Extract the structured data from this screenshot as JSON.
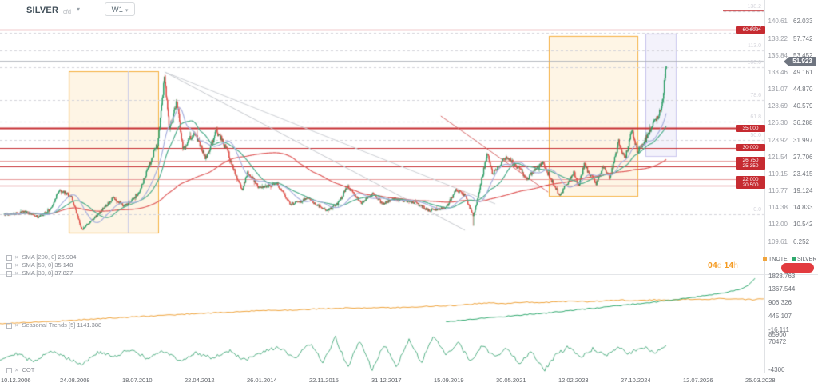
{
  "toolbar": {
    "symbol": "SILVER",
    "instrument_type": "cfd",
    "timeframe": "W1"
  },
  "legends": {
    "sma": [
      {
        "name": "SMA",
        "params": "[200, 0]",
        "value": "26.904"
      },
      {
        "name": "SMA",
        "params": "[50, 0]",
        "value": "35.148"
      },
      {
        "name": "SMA",
        "params": "[30, 0]",
        "value": "37.827"
      }
    ],
    "countdown": {
      "days": "04",
      "days_unit": "d",
      "hours": "14",
      "hours_unit": "h"
    },
    "overlay_series": [
      {
        "label": "TNOTE",
        "color": "#f0a43c"
      },
      {
        "label": "SILVER",
        "color": "#2fa96e"
      }
    ],
    "seasonal": {
      "name": "Seasonal",
      "name2": "Trends",
      "params": "[5]",
      "value": "1141.388"
    },
    "cot": {
      "name": "COT"
    }
  },
  "axes": {
    "price_left": [
      "140.61",
      "138.22",
      "135.84",
      "133.46",
      "131.07",
      "128.69",
      "126.30",
      "123.92",
      "121.54",
      "119.15",
      "116.77",
      "114.38",
      "112.00",
      "109.61"
    ],
    "price_right": [
      "62.033",
      "57.742",
      "53.452",
      "49.161",
      "44.870",
      "40.579",
      "36.288",
      "31.997",
      "27.706",
      "23.415",
      "19.124",
      "14.833",
      "10.542",
      "6.252"
    ],
    "current_price": "51.923",
    "seasonal_ticks": [
      "1828.763",
      "1367.544",
      "906.326",
      "445.107",
      "-16.111"
    ],
    "cot_ticks": [
      "85900",
      "70472",
      "-4300"
    ],
    "dates": [
      "10.12.2006",
      "24.08.2008",
      "18.07.2010",
      "22.04.2012",
      "26.01.2014",
      "22.11.2015",
      "31.12.2017",
      "15.09.2019",
      "30.05.2021",
      "12.02.2023",
      "27.10.2024",
      "12.07.2026",
      "25.03.2028"
    ]
  },
  "chart_data": {
    "type": "candlestick",
    "symbol": "SILVER",
    "timeframe": "W1",
    "price_range": [
      6.252,
      62.033
    ],
    "time_range": [
      2006.94,
      2028.23
    ],
    "current_price_value": 51.923,
    "price_keyframes": [
      [
        2006.6,
        13.1
      ],
      [
        2006.94,
        13.3
      ],
      [
        2007.2,
        13.9
      ],
      [
        2007.6,
        12.4
      ],
      [
        2007.95,
        14.5
      ],
      [
        2008.2,
        19.5
      ],
      [
        2008.55,
        17.5
      ],
      [
        2008.85,
        9.2
      ],
      [
        2009.3,
        13.0
      ],
      [
        2009.75,
        17.2
      ],
      [
        2010.1,
        15.2
      ],
      [
        2010.5,
        18.5
      ],
      [
        2010.9,
        28.0
      ],
      [
        2011.05,
        31.0
      ],
      [
        2011.25,
        48.5
      ],
      [
        2011.38,
        34.5
      ],
      [
        2011.6,
        42.0
      ],
      [
        2011.78,
        29.5
      ],
      [
        2012.1,
        34.0
      ],
      [
        2012.45,
        27.2
      ],
      [
        2012.75,
        34.5
      ],
      [
        2013.1,
        28.5
      ],
      [
        2013.3,
        23.3
      ],
      [
        2013.5,
        19.0
      ],
      [
        2013.65,
        24.0
      ],
      [
        2014.0,
        19.8
      ],
      [
        2014.5,
        21.0
      ],
      [
        2014.9,
        15.6
      ],
      [
        2015.4,
        17.2
      ],
      [
        2015.95,
        13.9
      ],
      [
        2016.3,
        16.2
      ],
      [
        2016.55,
        20.3
      ],
      [
        2016.95,
        16.0
      ],
      [
        2017.3,
        18.4
      ],
      [
        2017.55,
        15.9
      ],
      [
        2017.9,
        17.0
      ],
      [
        2018.5,
        16.2
      ],
      [
        2018.9,
        14.1
      ],
      [
        2019.4,
        14.8
      ],
      [
        2019.7,
        19.4
      ],
      [
        2019.95,
        17.9
      ],
      [
        2020.2,
        12.5
      ],
      [
        2020.6,
        28.8
      ],
      [
        2020.75,
        23.5
      ],
      [
        2021.1,
        27.5
      ],
      [
        2021.4,
        26.0
      ],
      [
        2021.75,
        22.3
      ],
      [
        2022.2,
        26.2
      ],
      [
        2022.7,
        17.9
      ],
      [
        2023.1,
        23.8
      ],
      [
        2023.25,
        20.3
      ],
      [
        2023.4,
        25.8
      ],
      [
        2023.75,
        20.9
      ],
      [
        2023.95,
        25.2
      ],
      [
        2024.15,
        22.2
      ],
      [
        2024.4,
        31.5
      ],
      [
        2024.6,
        27.5
      ],
      [
        2024.8,
        34.5
      ],
      [
        2024.95,
        29.0
      ],
      [
        2025.2,
        32.3
      ],
      [
        2025.45,
        36.8
      ],
      [
        2025.6,
        39.0
      ],
      [
        2025.7,
        44.0
      ],
      [
        2025.78,
        51.9
      ]
    ],
    "horizontal_levels": [
      {
        "label": null,
        "price": 64.9,
        "weight": 1,
        "light": false
      },
      {
        "label": "60.000",
        "price": 60.0,
        "weight": 1,
        "light": false
      },
      {
        "label": "35.000",
        "price": 35.0,
        "weight": 2,
        "light": false
      },
      {
        "label": "30.000",
        "price": 30.0,
        "weight": 1,
        "light": false
      },
      {
        "label": "26.750",
        "price": 26.75,
        "weight": 1,
        "light": true
      },
      {
        "label": "25.350",
        "price": 25.35,
        "weight": 1,
        "light": false
      },
      {
        "label": "22.000",
        "price": 22.0,
        "weight": 1,
        "light": true
      },
      {
        "label": "20.500",
        "price": 20.5,
        "weight": 1,
        "light": false
      }
    ],
    "fib_levels": [
      {
        "label": "138.2",
        "price": 64.7
      },
      {
        "label": "127.2",
        "price": 59.2
      },
      {
        "label": "113.0",
        "price": 54.7
      },
      {
        "label": "100.0",
        "price": 50.5
      },
      {
        "label": "78.6",
        "price": 42.2
      },
      {
        "label": "61.8",
        "price": 36.7
      },
      {
        "label": "50.0",
        "price": 32.0
      },
      {
        "label": "0.0",
        "price": 13.15
      }
    ],
    "sma_lines": [
      {
        "window": 200,
        "color": "#e05b5b"
      },
      {
        "window": 50,
        "color": "#4fae8d"
      },
      {
        "window": 30,
        "color": "#a7b0de"
      }
    ],
    "boxes": [
      {
        "t0": 2008.47,
        "t1": 2011.06,
        "p0": 8.48,
        "p1": 49.45,
        "accent": "orange"
      },
      {
        "t0": 2022.38,
        "t1": 2024.95,
        "p0": 17.8,
        "p1": 58.4,
        "accent": "orange"
      },
      {
        "t0": 2025.18,
        "t1": 2026.06,
        "p0": 27.95,
        "p1": 59.0,
        "accent": "purple"
      }
    ],
    "vlines": [
      {
        "t": 2010.18,
        "p0": 8.48,
        "p1": 49.45,
        "color": "#c9cbe8"
      }
    ],
    "trendlines": [
      {
        "t": [
          2011.25,
          2019.95
        ],
        "p": [
          49.25,
          9.1
        ],
        "color": "#c6c9ce"
      },
      {
        "t": [
          2011.25,
          2020.83
        ],
        "p": [
          49.25,
          15.8
        ],
        "color": "#cdd0d5"
      },
      {
        "t": [
          2019.25,
          2022.36
        ],
        "p": [
          38.1,
          18.8
        ],
        "color": "#d96a6a"
      }
    ],
    "seasonal_series": [
      {
        "name": "TNOTE",
        "color": "#f0a43c",
        "points": [
          [
            0.0,
            190
          ],
          [
            0.03,
            230
          ],
          [
            0.06,
            260
          ],
          [
            0.09,
            310
          ],
          [
            0.12,
            360
          ],
          [
            0.15,
            400
          ],
          [
            0.18,
            450
          ],
          [
            0.21,
            490
          ],
          [
            0.24,
            540
          ],
          [
            0.27,
            570
          ],
          [
            0.3,
            610
          ],
          [
            0.33,
            650
          ],
          [
            0.36,
            660
          ],
          [
            0.39,
            700
          ],
          [
            0.42,
            720
          ],
          [
            0.45,
            740
          ],
          [
            0.48,
            735
          ],
          [
            0.5,
            760
          ],
          [
            0.53,
            790
          ],
          [
            0.56,
            820
          ],
          [
            0.58,
            870
          ],
          [
            0.6,
            900
          ],
          [
            0.62,
            880
          ],
          [
            0.64,
            930
          ],
          [
            0.66,
            910
          ],
          [
            0.68,
            940
          ],
          [
            0.7,
            960
          ],
          [
            0.72,
            940
          ],
          [
            0.74,
            980
          ],
          [
            0.76,
            1000
          ],
          [
            0.78,
            970
          ],
          [
            0.8,
            1010
          ],
          [
            0.82,
            990
          ],
          [
            0.84,
            1030
          ],
          [
            0.86,
            1010
          ],
          [
            0.88,
            1050
          ],
          [
            0.9,
            1030
          ],
          [
            0.92,
            1010
          ],
          [
            0.94,
            1050
          ],
          [
            0.96,
            1090
          ],
          [
            0.98,
            1141
          ]
        ]
      },
      {
        "name": "SILVER",
        "color": "#2fa96e",
        "points": [
          [
            0.545,
            260
          ],
          [
            0.57,
            320
          ],
          [
            0.59,
            380
          ],
          [
            0.61,
            420
          ],
          [
            0.63,
            470
          ],
          [
            0.65,
            520
          ],
          [
            0.67,
            560
          ],
          [
            0.69,
            620
          ],
          [
            0.71,
            680
          ],
          [
            0.73,
            730
          ],
          [
            0.75,
            790
          ],
          [
            0.77,
            850
          ],
          [
            0.79,
            900
          ],
          [
            0.81,
            960
          ],
          [
            0.83,
            1030
          ],
          [
            0.85,
            1100
          ],
          [
            0.87,
            1180
          ],
          [
            0.89,
            1280
          ],
          [
            0.905,
            1380
          ],
          [
            0.915,
            1500
          ],
          [
            0.925,
            1828
          ]
        ]
      }
    ],
    "cot_series": {
      "name": "COT",
      "color": "#2fa06b",
      "points": [
        [
          0.0,
          25000
        ],
        [
          0.02,
          40000
        ],
        [
          0.04,
          18000
        ],
        [
          0.06,
          45000
        ],
        [
          0.08,
          30000
        ],
        [
          0.1,
          12000
        ],
        [
          0.12,
          42000
        ],
        [
          0.14,
          30000
        ],
        [
          0.16,
          50000
        ],
        [
          0.18,
          25000
        ],
        [
          0.2,
          45000
        ],
        [
          0.22,
          20000
        ],
        [
          0.24,
          40000
        ],
        [
          0.26,
          28000
        ],
        [
          0.28,
          45000
        ],
        [
          0.3,
          22000
        ],
        [
          0.32,
          40000
        ],
        [
          0.34,
          55000
        ],
        [
          0.36,
          25000
        ],
        [
          0.38,
          65000
        ],
        [
          0.395,
          15000
        ],
        [
          0.41,
          78000
        ],
        [
          0.425,
          5000
        ],
        [
          0.44,
          70000
        ],
        [
          0.455,
          -2000
        ],
        [
          0.47,
          62000
        ],
        [
          0.485,
          8000
        ],
        [
          0.5,
          72000
        ],
        [
          0.515,
          18000
        ],
        [
          0.53,
          80000
        ],
        [
          0.545,
          35000
        ],
        [
          0.56,
          65000
        ],
        [
          0.575,
          20000
        ],
        [
          0.59,
          58000
        ],
        [
          0.605,
          30000
        ],
        [
          0.62,
          52000
        ],
        [
          0.635,
          15000
        ],
        [
          0.65,
          45000
        ],
        [
          0.665,
          -4000
        ],
        [
          0.68,
          35000
        ],
        [
          0.695,
          55000
        ],
        [
          0.71,
          28000
        ],
        [
          0.725,
          50000
        ],
        [
          0.74,
          32000
        ],
        [
          0.755,
          52000
        ],
        [
          0.77,
          38000
        ],
        [
          0.785,
          55000
        ],
        [
          0.8,
          42000
        ],
        [
          0.815,
          60000
        ]
      ]
    },
    "candle_colors": {
      "up": "#2a9c64",
      "down": "#de4c44"
    }
  }
}
